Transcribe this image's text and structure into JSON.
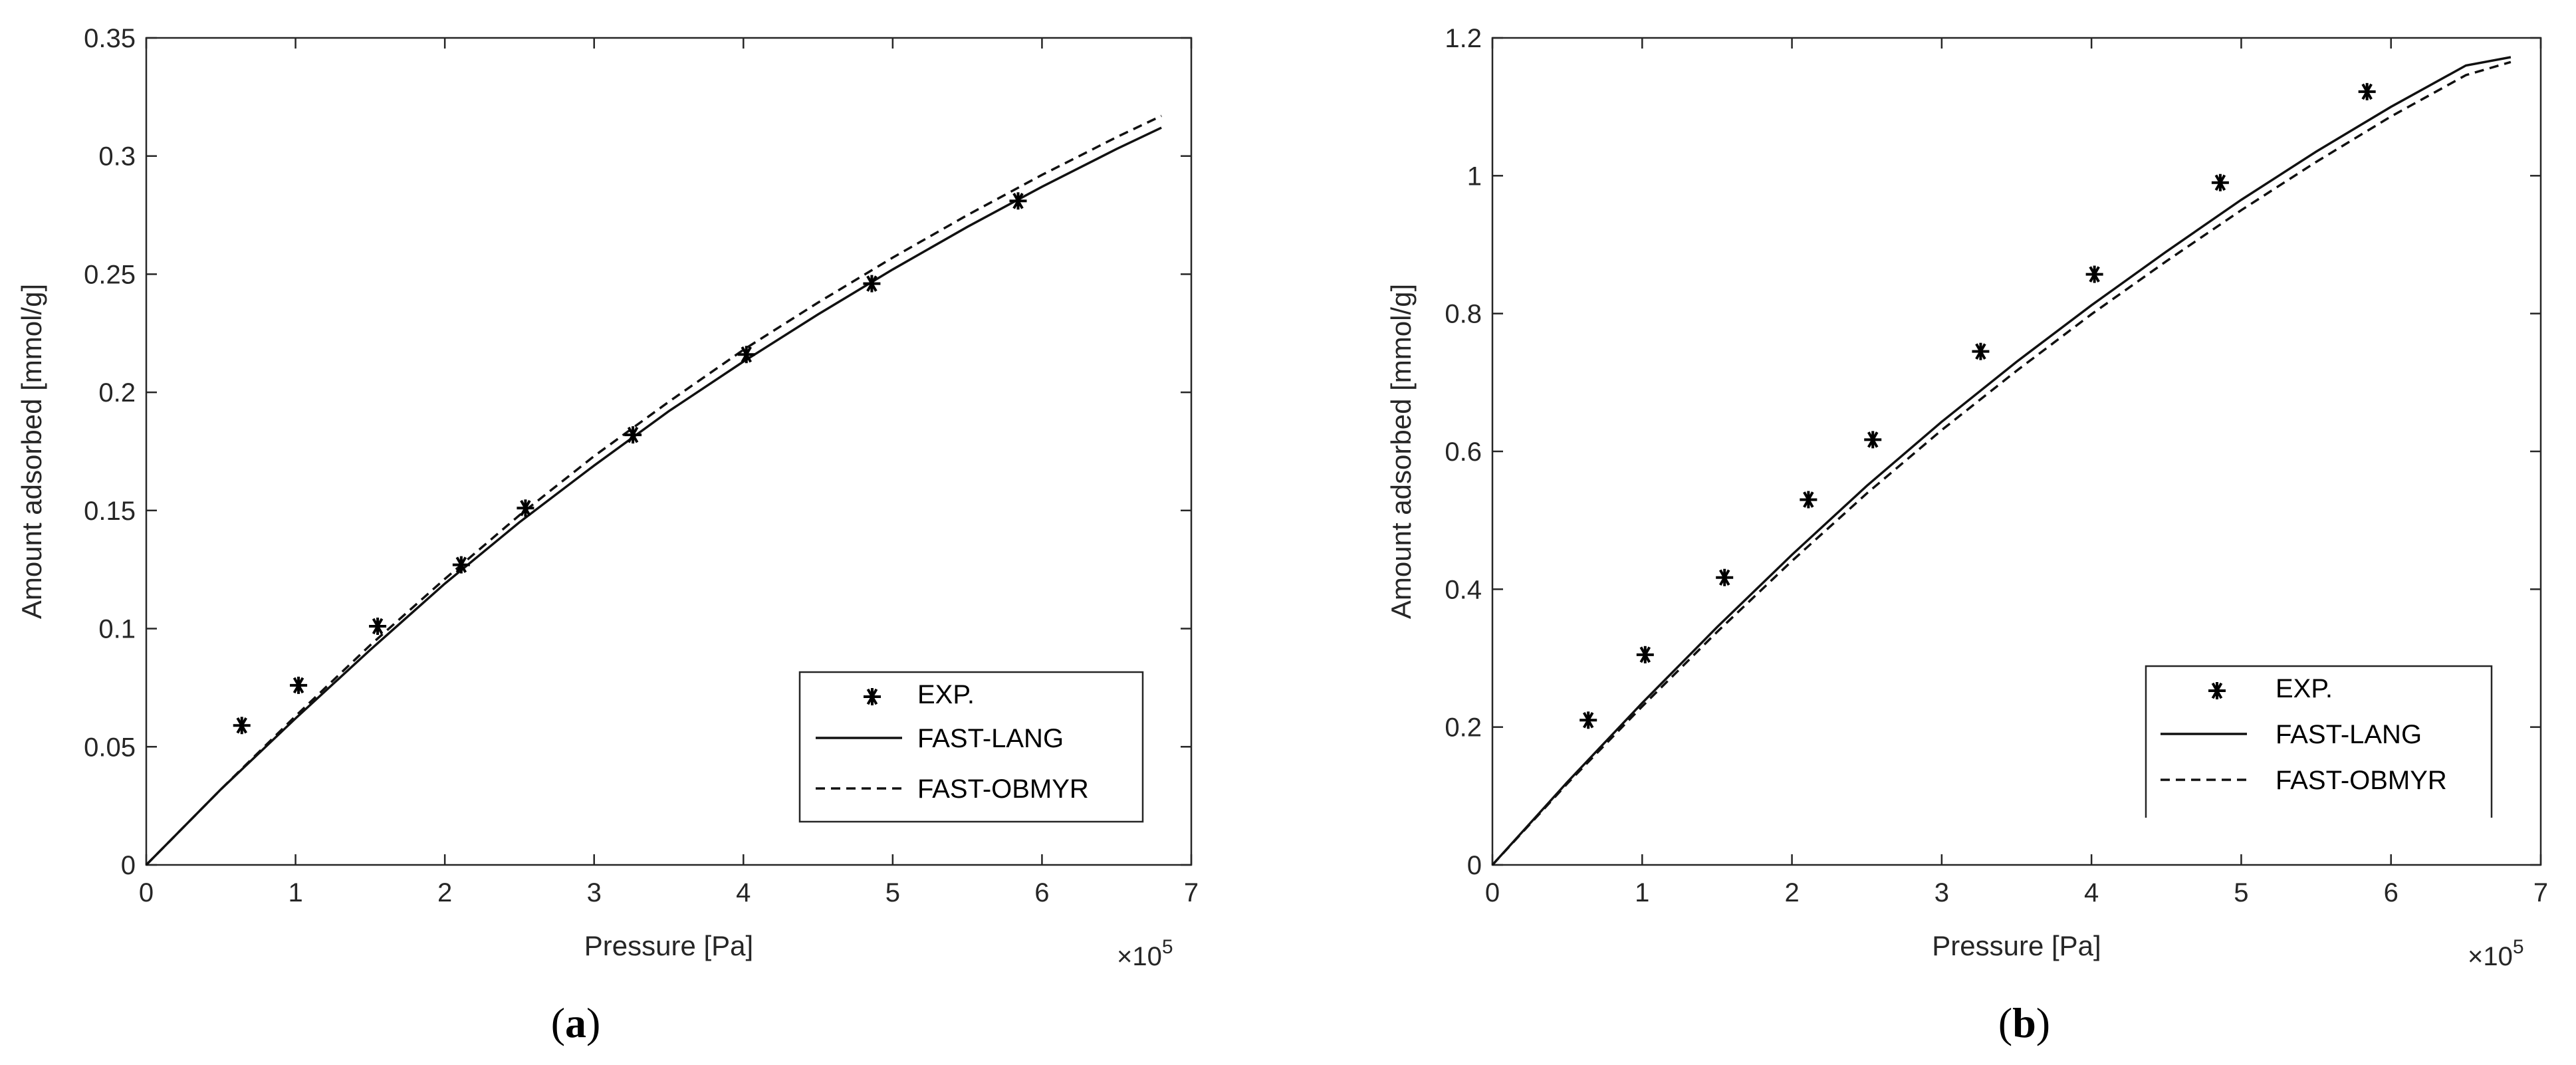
{
  "chart_data": [
    {
      "type": "scatter+line",
      "caption": {
        "open": "(",
        "letter": "a",
        "close": ")"
      },
      "xlabel": "Pressure  [Pa]",
      "ylabel": "Amount adsorbed  [mmol/g]",
      "x_multiplier": {
        "base": "×10",
        "exp": "5"
      },
      "xlim": [
        0,
        7
      ],
      "ylim": [
        0,
        0.35
      ],
      "xticks": [
        0,
        1,
        2,
        3,
        4,
        5,
        6,
        7
      ],
      "xtick_labels": [
        "0",
        "1",
        "2",
        "3",
        "4",
        "5",
        "6",
        "7"
      ],
      "yticks": [
        0,
        0.05,
        0.1,
        0.15,
        0.2,
        0.25,
        0.3,
        0.35
      ],
      "ytick_labels": [
        "0",
        "0.05",
        "0.1",
        "0.15",
        "0.2",
        "0.25",
        "0.3",
        "0.35"
      ],
      "legend_position": "bottom-right",
      "series": [
        {
          "name": "EXP.",
          "style": "asterisk",
          "x": [
            0.64,
            1.02,
            1.55,
            2.11,
            2.54,
            3.26,
            4.02,
            4.86,
            5.84
          ],
          "y": [
            0.059,
            0.076,
            0.101,
            0.127,
            0.151,
            0.182,
            0.216,
            0.246,
            0.281
          ]
        },
        {
          "name": "FAST-LANG",
          "style": "solid",
          "x": [
            0,
            0.5,
            1,
            1.5,
            2,
            2.5,
            3,
            3.5,
            4,
            4.5,
            5,
            5.5,
            6,
            6.5,
            6.8
          ],
          "y": [
            0,
            0.032,
            0.062,
            0.091,
            0.119,
            0.145,
            0.169,
            0.192,
            0.213,
            0.233,
            0.252,
            0.27,
            0.287,
            0.303,
            0.312
          ]
        },
        {
          "name": "FAST-OBMYR",
          "style": "dashed",
          "x": [
            0,
            0.5,
            1,
            1.5,
            2,
            2.5,
            3,
            3.5,
            4,
            4.5,
            5,
            5.5,
            6,
            6.5,
            6.8
          ],
          "y": [
            0,
            0.032,
            0.063,
            0.093,
            0.121,
            0.148,
            0.173,
            0.196,
            0.218,
            0.238,
            0.257,
            0.275,
            0.292,
            0.308,
            0.317
          ]
        }
      ]
    },
    {
      "type": "scatter+line",
      "caption": {
        "open": "(",
        "letter": "b",
        "close": ")"
      },
      "xlabel": "Pressure  [Pa]",
      "ylabel": "Amount adsorbed  [mmol/g]",
      "x_multiplier": {
        "base": "×10",
        "exp": "5"
      },
      "xlim": [
        0,
        7
      ],
      "ylim": [
        0,
        1.2
      ],
      "xticks": [
        0,
        1,
        2,
        3,
        4,
        5,
        6,
        7
      ],
      "xtick_labels": [
        "0",
        "1",
        "2",
        "3",
        "4",
        "5",
        "6",
        "7"
      ],
      "yticks": [
        0,
        0.2,
        0.4,
        0.6,
        0.8,
        1,
        1.2
      ],
      "ytick_labels": [
        "0",
        "0.2",
        "0.4",
        "0.6",
        "0.8",
        "1",
        "1.2"
      ],
      "legend_position": "bottom-right",
      "series": [
        {
          "name": "EXP.",
          "style": "asterisk",
          "x": [
            0.64,
            1.02,
            1.55,
            2.11,
            2.54,
            3.26,
            4.02,
            4.86,
            5.84
          ],
          "y": [
            0.21,
            0.305,
            0.417,
            0.53,
            0.617,
            0.745,
            0.857,
            0.99,
            1.122
          ]
        },
        {
          "name": "FAST-LANG",
          "style": "solid",
          "x": [
            0,
            0.5,
            1,
            1.5,
            2,
            2.5,
            3,
            3.5,
            4,
            4.5,
            5,
            5.5,
            6,
            6.5,
            6.8
          ],
          "y": [
            0,
            0.12,
            0.235,
            0.345,
            0.45,
            0.55,
            0.643,
            0.73,
            0.812,
            0.89,
            0.965,
            1.035,
            1.1,
            1.16,
            1.172
          ]
        },
        {
          "name": "FAST-OBMYR",
          "style": "dashed",
          "x": [
            0,
            0.5,
            1,
            1.5,
            2,
            2.5,
            3,
            3.5,
            4,
            4.5,
            5,
            5.5,
            6,
            6.5,
            6.8
          ],
          "y": [
            0,
            0.118,
            0.23,
            0.338,
            0.441,
            0.539,
            0.631,
            0.717,
            0.799,
            0.876,
            0.95,
            1.02,
            1.086,
            1.146,
            1.165
          ]
        }
      ]
    }
  ]
}
